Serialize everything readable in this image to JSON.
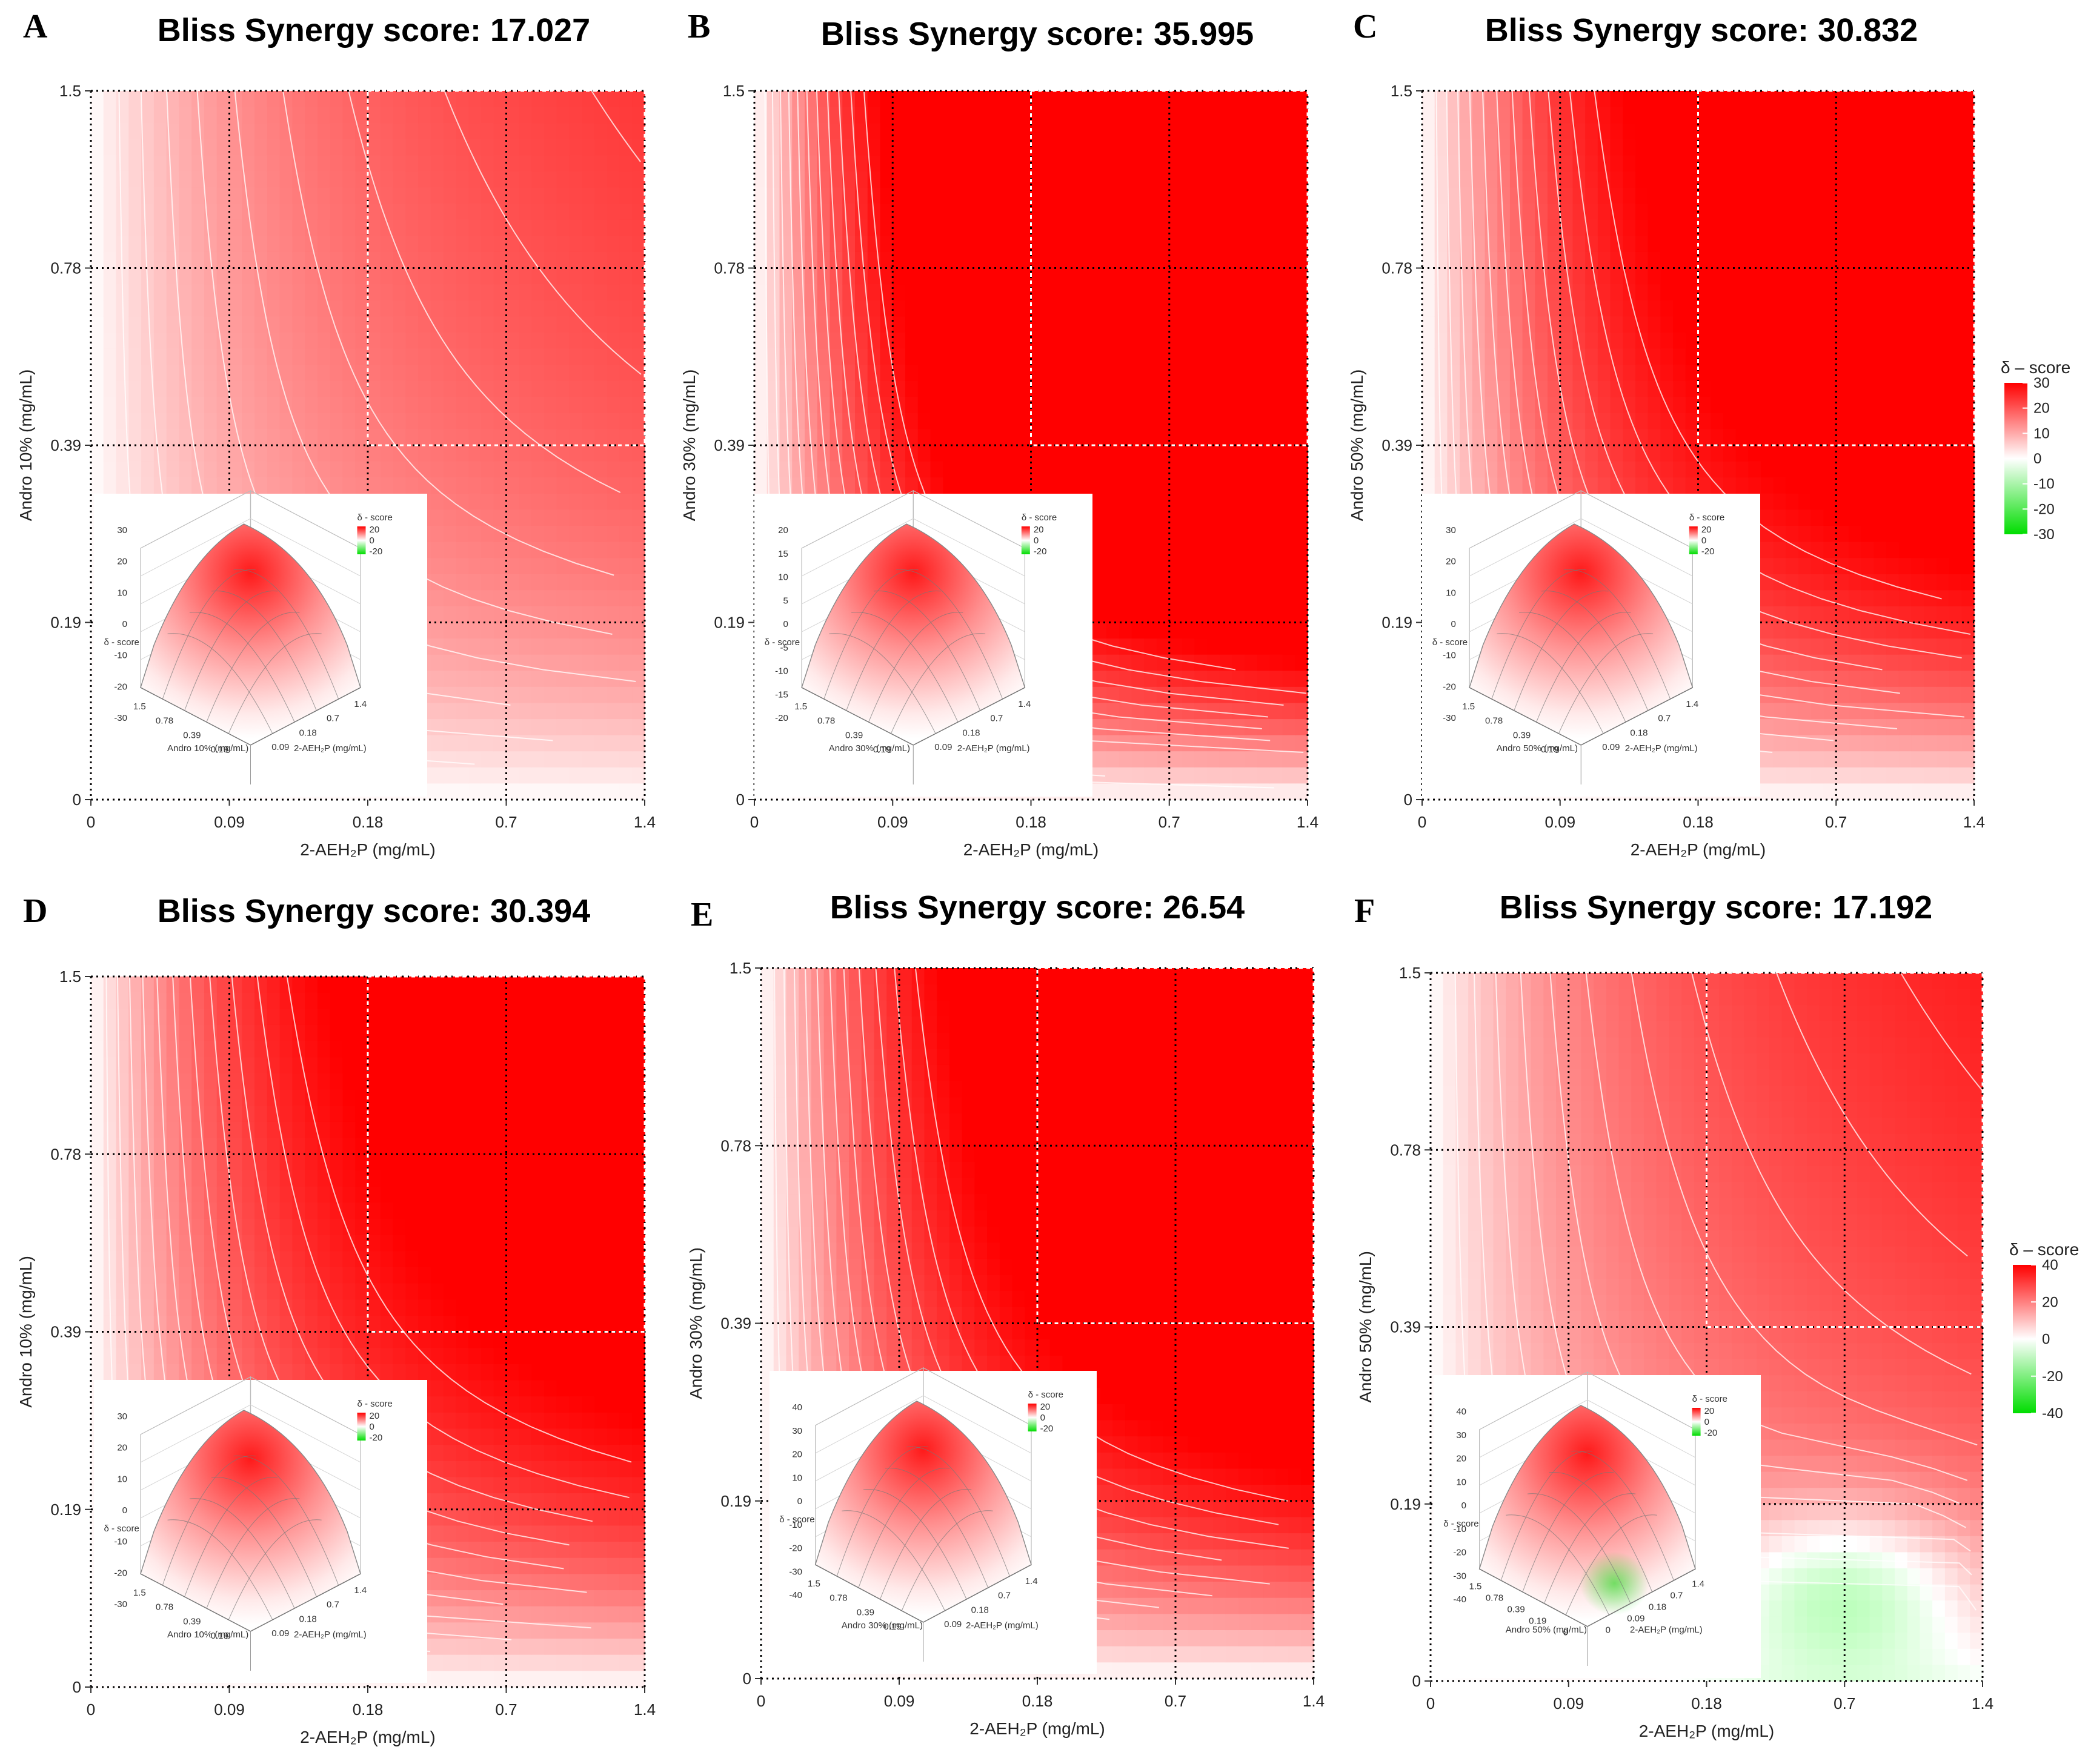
{
  "figure": {
    "legend_title": "δ – score",
    "colors": {
      "low": "#00dd00",
      "mid": "#ffffff",
      "high": "#ff0000",
      "contour": "#ffffff",
      "grid": "#000000"
    }
  },
  "chart_data": [
    {
      "panel": "A",
      "type": "heatmap",
      "title": "Bliss Synergy score: 17.027",
      "xlabel": "2-AEH₂P (mg/mL)",
      "ylabel": "Andro 10% (mg/mL)",
      "x_ticks": [
        "0",
        "0.09",
        "0.18",
        "0.7",
        "1.4"
      ],
      "y_ticks": [
        "0",
        "0.19",
        "0.39",
        "0.78",
        "1.5"
      ],
      "max_score": 30,
      "sensitivity": 0.8,
      "has_green": false,
      "inset": {
        "legend_title": "δ - score",
        "legend_ticks": [
          "20",
          "0",
          "-20"
        ],
        "z_ticks": [
          "30",
          "20",
          "10",
          "0",
          "-10",
          "-20",
          "-30"
        ],
        "zlabel": "δ - score",
        "xlabel": "Andro 10% (mg/mL)",
        "ylabel": "2-AEH₂P (mg/mL)",
        "x_ticks": [
          "1.5",
          "0.78",
          "0.39",
          "0.19"
        ],
        "y_ticks": [
          "1.4",
          "0.7",
          "0.18",
          "0.09"
        ]
      },
      "legend": null
    },
    {
      "panel": "B",
      "type": "heatmap",
      "title": "Bliss Synergy score: 35.995",
      "xlabel": "2-AEH₂P (mg/mL)",
      "ylabel": "Andro 30% (mg/mL)",
      "x_ticks": [
        "0",
        "0.09",
        "0.18",
        "0.7",
        "1.4"
      ],
      "y_ticks": [
        "0",
        "0.19",
        "0.39",
        "0.78",
        "1.5"
      ],
      "max_score": 30,
      "sensitivity": 2.0,
      "has_green": false,
      "inset": {
        "legend_title": "δ - score",
        "legend_ticks": [
          "20",
          "0",
          "-20"
        ],
        "z_ticks": [
          "20",
          "15",
          "10",
          "5",
          "0",
          "-5",
          "-10",
          "-15",
          "-20"
        ],
        "zlabel": "δ - score",
        "xlabel": "Andro 30% (mg/mL)",
        "ylabel": "2-AEH₂P (mg/mL)",
        "x_ticks": [
          "1.5",
          "0.78",
          "0.39",
          "0.19"
        ],
        "y_ticks": [
          "1.4",
          "0.7",
          "0.18",
          "0.09"
        ]
      },
      "legend": null
    },
    {
      "panel": "C",
      "type": "heatmap",
      "title": "Bliss Synergy score: 30.832",
      "xlabel": "2-AEH₂P (mg/mL)",
      "ylabel": "Andro 50% (mg/mL)",
      "x_ticks": [
        "0",
        "0.09",
        "0.18",
        "0.7",
        "1.4"
      ],
      "y_ticks": [
        "0",
        "0.19",
        "0.39",
        "0.78",
        "1.5"
      ],
      "max_score": 30,
      "sensitivity": 1.5,
      "has_green": false,
      "inset": {
        "legend_title": "δ - score",
        "legend_ticks": [
          "20",
          "0",
          "-20"
        ],
        "z_ticks": [
          "30",
          "20",
          "10",
          "0",
          "-10",
          "-20",
          "-30"
        ],
        "zlabel": "δ - score",
        "xlabel": "Andro 50% (mg/mL)",
        "ylabel": "2-AEH₂P (mg/mL)",
        "x_ticks": [
          "1.5",
          "0.78",
          "0.39",
          "0.19"
        ],
        "y_ticks": [
          "1.4",
          "0.7",
          "0.18",
          "0.09"
        ]
      },
      "legend": {
        "title": "δ – score",
        "ticks": [
          30,
          20,
          10,
          0,
          -10,
          -20,
          -30
        ],
        "range": [
          -30,
          30
        ]
      }
    },
    {
      "panel": "D",
      "type": "heatmap",
      "title": "Bliss Synergy score: 30.394",
      "xlabel": "2-AEH₂P (mg/mL)",
      "ylabel": "Andro 10% (mg/mL)",
      "x_ticks": [
        "0",
        "0.09",
        "0.18",
        "0.7",
        "1.4"
      ],
      "y_ticks": [
        "0",
        "0.19",
        "0.39",
        "0.78",
        "1.5"
      ],
      "max_score": 30,
      "sensitivity": 1.4,
      "has_green": false,
      "inset": {
        "legend_title": "δ - score",
        "legend_ticks": [
          "20",
          "0",
          "-20"
        ],
        "z_ticks": [
          "30",
          "20",
          "10",
          "0",
          "-10",
          "-20",
          "-30"
        ],
        "zlabel": "δ - score",
        "xlabel": "Andro 10% (mg/mL)",
        "ylabel": "2-AEH₂P (mg/mL)",
        "x_ticks": [
          "1.5",
          "0.78",
          "0.39",
          "0.19"
        ],
        "y_ticks": [
          "1.4",
          "0.7",
          "0.18",
          "0.09"
        ]
      },
      "legend": null
    },
    {
      "panel": "E",
      "type": "heatmap",
      "title": "Bliss Synergy score: 26.54",
      "xlabel": "2-AEH₂P (mg/mL)",
      "ylabel": "Andro 30% (mg/mL)",
      "x_ticks": [
        "0",
        "0.09",
        "0.18",
        "0.7",
        "1.4"
      ],
      "y_ticks": [
        "0",
        "0.19",
        "0.39",
        "0.78",
        "1.5"
      ],
      "max_score": 40,
      "sensitivity": 1.6,
      "has_green": false,
      "inset": {
        "legend_title": "δ - score",
        "legend_ticks": [
          "20",
          "0",
          "-20"
        ],
        "z_ticks": [
          "40",
          "30",
          "20",
          "10",
          "0",
          "-10",
          "-20",
          "-30",
          "-40"
        ],
        "zlabel": "δ - score",
        "xlabel": "Andro 30% (mg/mL)",
        "ylabel": "2-AEH₂P (mg/mL)",
        "x_ticks": [
          "1.5",
          "0.78",
          "0.39",
          "0.19"
        ],
        "y_ticks": [
          "1.4",
          "0.7",
          "0.18",
          "0.09"
        ]
      },
      "legend": null
    },
    {
      "panel": "F",
      "type": "heatmap",
      "title": "Bliss Synergy score: 17.192",
      "xlabel": "2-AEH₂P (mg/mL)",
      "ylabel": "Andro 50% (mg/mL)",
      "x_ticks": [
        "0",
        "0.09",
        "0.18",
        "0.7",
        "1.4"
      ],
      "y_ticks": [
        "0",
        "0.19",
        "0.39",
        "0.78",
        "1.5"
      ],
      "max_score": 40,
      "sensitivity": 0.9,
      "has_green": true,
      "inset": {
        "legend_title": "δ - score",
        "legend_ticks": [
          "20",
          "0",
          "-20"
        ],
        "z_ticks": [
          "40",
          "30",
          "20",
          "10",
          "0",
          "-10",
          "-20",
          "-30",
          "-40"
        ],
        "zlabel": "δ - score",
        "xlabel": "Andro 50% (mg/mL)",
        "ylabel": "2-AEH₂P (mg/mL)",
        "x_ticks": [
          "1.5",
          "0.78",
          "0.39",
          "0.19",
          "0"
        ],
        "y_ticks": [
          "1.4",
          "0.7",
          "0.18",
          "0.09",
          "0"
        ]
      },
      "legend": {
        "title": "δ – score",
        "ticks": [
          40,
          20,
          0,
          -20,
          -40
        ],
        "range": [
          -40,
          40
        ]
      }
    }
  ]
}
